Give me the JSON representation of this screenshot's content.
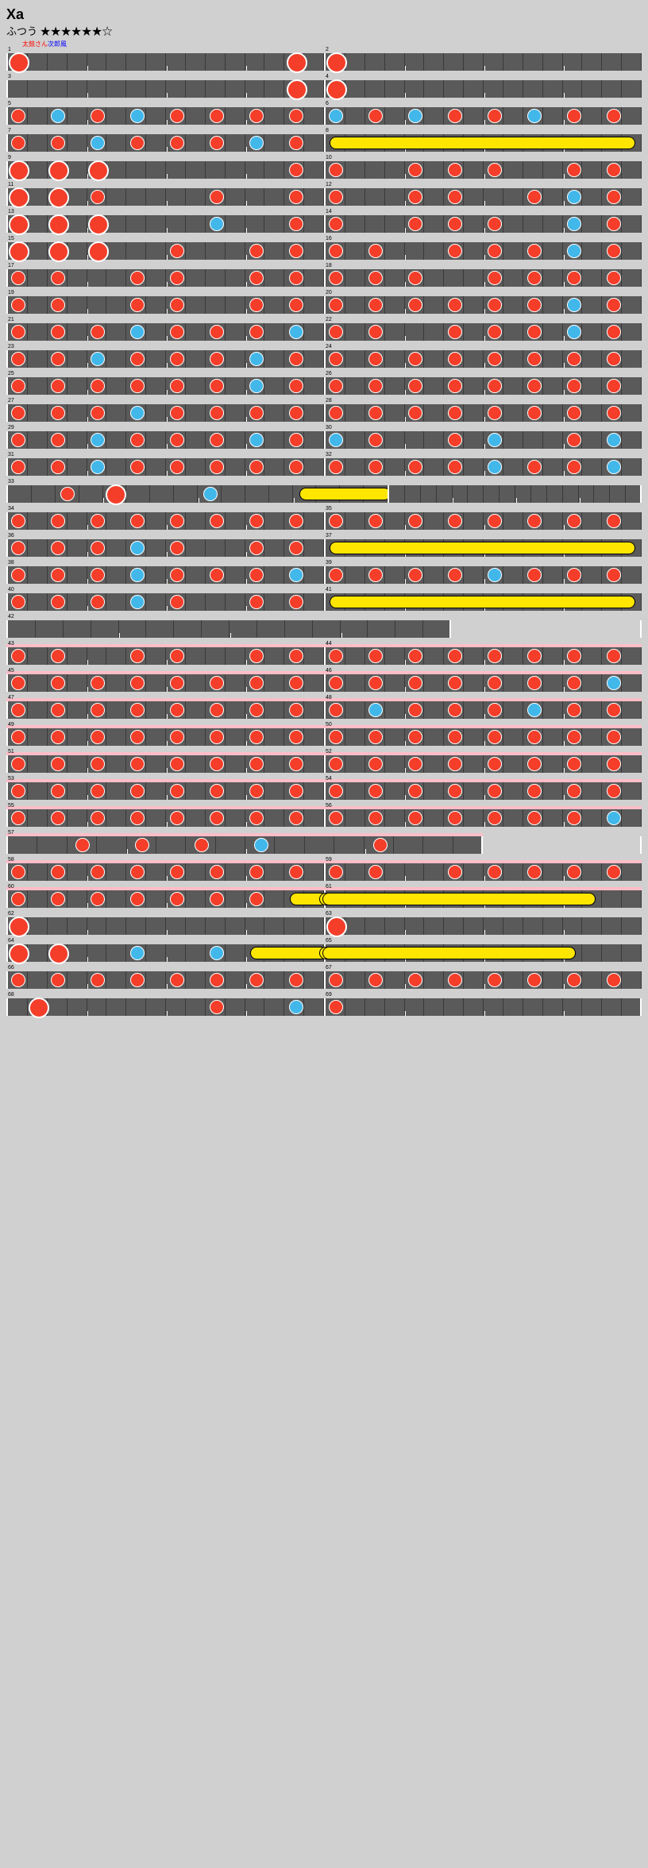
{
  "title": "Xa",
  "difficulty_label": "ふつう",
  "stars": "★★★★★★☆",
  "credit": {
    "red": "太鼓さん",
    "blue": "次郎風"
  },
  "colors": {
    "don": "#f43e2a",
    "ka": "#42b8ea",
    "roll": "#ffe600",
    "track": "#5a5a5a",
    "gogo": "#ffbdc8",
    "bg": "#d0d0d0"
  },
  "layout": {
    "row_width": 800,
    "measures_per_row": 2,
    "cells_per_measure": 16,
    "track_height": 22
  },
  "note_types": {
    "0": "rest",
    "1": "don",
    "2": "ka",
    "3": "bigdon",
    "4": "bigka",
    "5": "roll_start",
    "8": "roll_end"
  },
  "measures": [
    {
      "n": 1,
      "p": "3000000000000030",
      "gogo": false
    },
    {
      "n": 2,
      "p": "3000000000000000",
      "gogo": false
    },
    {
      "n": 3,
      "p": "0000000000000030",
      "gogo": false
    },
    {
      "n": 4,
      "p": "3000000000000000",
      "gogo": false
    },
    {
      "n": 5,
      "p": "1020102010101010",
      "gogo": false
    },
    {
      "n": 6,
      "p": "2010201010201010",
      "gogo": false
    },
    {
      "n": 7,
      "p": "1010201010102010",
      "gogo": false
    },
    {
      "n": 8,
      "p": "5000000000000008",
      "gogo": false
    },
    {
      "n": 9,
      "p": "3030300000000010",
      "gogo": false
    },
    {
      "n": 10,
      "p": "1000101010001010",
      "gogo": false
    },
    {
      "n": 11,
      "p": "3030100000100010",
      "gogo": false
    },
    {
      "n": 12,
      "p": "1000101000102010",
      "gogo": false
    },
    {
      "n": 13,
      "p": "3030300000200010",
      "gogo": false
    },
    {
      "n": 14,
      "p": "1000101010002010",
      "gogo": false
    },
    {
      "n": 15,
      "p": "3030300010001010",
      "gogo": false
    },
    {
      "n": 16,
      "p": "1010001010102010",
      "gogo": false
    },
    {
      "n": 17,
      "p": "1010001010001010",
      "gogo": false
    },
    {
      "n": 18,
      "p": "1010100010101010",
      "gogo": false
    },
    {
      "n": 19,
      "p": "1010001010001010",
      "gogo": false
    },
    {
      "n": 20,
      "p": "1010101010102010",
      "gogo": false
    },
    {
      "n": 21,
      "p": "1010102010101020",
      "gogo": false
    },
    {
      "n": 22,
      "p": "1010001010102010",
      "gogo": false
    },
    {
      "n": 23,
      "p": "1010201010102010",
      "gogo": false
    },
    {
      "n": 24,
      "p": "1010101010101010",
      "gogo": false
    },
    {
      "n": 25,
      "p": "1010101010102010",
      "gogo": false
    },
    {
      "n": 26,
      "p": "1010101010101010",
      "gogo": false
    },
    {
      "n": 27,
      "p": "1010102010101010",
      "gogo": false
    },
    {
      "n": 28,
      "p": "1010101010101010",
      "gogo": false
    },
    {
      "n": 29,
      "p": "1010201010102010",
      "gogo": false
    },
    {
      "n": 30,
      "p": "2010001020001020",
      "gogo": false
    },
    {
      "n": 31,
      "p": "1010201010101010",
      "gogo": false
    },
    {
      "n": 32,
      "p": "1010101020101020",
      "gogo": false
    },
    {
      "n": 33,
      "p": "0010300020005000",
      "gogo": false,
      "w": 0.6
    },
    {
      "n": 33.5,
      "p": "0008000000000000",
      "gogo": false,
      "w": 0.4,
      "hide_num": true,
      "short": true
    },
    {
      "n": 34,
      "p": "1010101010101010",
      "gogo": false
    },
    {
      "n": 35,
      "p": "1010101010101010",
      "gogo": false
    },
    {
      "n": 36,
      "p": "1010102010001010",
      "gogo": false
    },
    {
      "n": 37,
      "p": "5000000000000008",
      "gogo": false
    },
    {
      "n": 38,
      "p": "1010102010101020",
      "gogo": false
    },
    {
      "n": 39,
      "p": "1010101020101010",
      "gogo": false
    },
    {
      "n": 40,
      "p": "1010102010001010",
      "gogo": false
    },
    {
      "n": 41,
      "p": "5000000000000008",
      "gogo": false
    },
    {
      "n": 42,
      "p": "0000000000000000",
      "gogo": false,
      "w": 0.7,
      "solo": true
    },
    {
      "n": 43,
      "p": "1010001010001010",
      "gogo": true
    },
    {
      "n": 44,
      "p": "1010101010101010",
      "gogo": true
    },
    {
      "n": 45,
      "p": "1010101010101010",
      "gogo": true
    },
    {
      "n": 46,
      "p": "1010101010101020",
      "gogo": true
    },
    {
      "n": 47,
      "p": "1010101010101010",
      "gogo": true
    },
    {
      "n": 48,
      "p": "1020101010201010",
      "gogo": true
    },
    {
      "n": 49,
      "p": "1010101010101010",
      "gogo": true
    },
    {
      "n": 50,
      "p": "1010101010101010",
      "gogo": true
    },
    {
      "n": 51,
      "p": "1010101010101010",
      "gogo": true
    },
    {
      "n": 52,
      "p": "1010101010101010",
      "gogo": true
    },
    {
      "n": 53,
      "p": "1010101010101010",
      "gogo": true
    },
    {
      "n": 54,
      "p": "1010101010101010",
      "gogo": true
    },
    {
      "n": 55,
      "p": "1010101010101010",
      "gogo": true
    },
    {
      "n": 56,
      "p": "1010101010101020",
      "gogo": true
    },
    {
      "n": 57,
      "p": "0010101020001000",
      "gogo": true,
      "w": 0.75,
      "solo": true
    },
    {
      "n": 58,
      "p": "1010101010101010",
      "gogo": true
    },
    {
      "n": 59,
      "p": "1010001010101010",
      "gogo": true
    },
    {
      "n": 60,
      "p": "1010101010101050",
      "gogo": true
    },
    {
      "n": 61,
      "p": "0000000000000800",
      "gogo": true,
      "roll_continue": true
    },
    {
      "n": 62,
      "p": "3000000000000000",
      "gogo": false
    },
    {
      "n": 63,
      "p": "3000000000000000",
      "gogo": false
    },
    {
      "n": 64,
      "p": "3030002000205000",
      "gogo": false
    },
    {
      "n": 65,
      "p": "0000000000008000",
      "gogo": false,
      "roll_continue": true
    },
    {
      "n": 66,
      "p": "1010101010101010",
      "gogo": false
    },
    {
      "n": 67,
      "p": "1010101010101010",
      "gogo": false
    },
    {
      "n": 68,
      "p": "0300000000100020",
      "gogo": false
    },
    {
      "n": 69,
      "p": "1000000000000000",
      "gogo": false,
      "w": 0.5,
      "solo_partial": true
    }
  ]
}
